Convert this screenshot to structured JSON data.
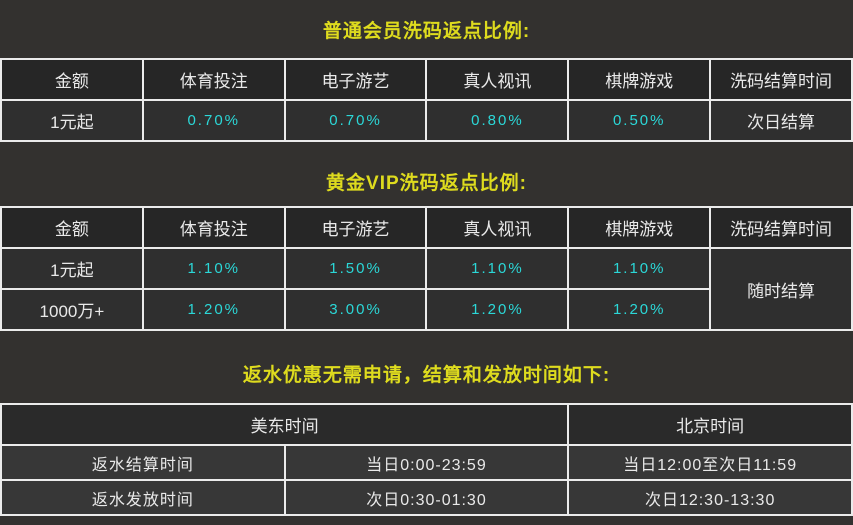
{
  "colors": {
    "page_background": "#33312f",
    "title_yellow": "#dedb1e",
    "value_cyan": "#2bd8d8",
    "table_border": "#ebebeb",
    "header_cell_background": "#262626",
    "data_cell_background": "#2f2f2f",
    "schedule_cell_background": "#373737",
    "text_white": "#e9e9e9"
  },
  "sections": [
    {
      "title": "普通会员洗码返点比例:",
      "table": {
        "headers": [
          "金额",
          "体育投注",
          "电子游艺",
          "真人视讯",
          "棋牌游戏",
          "洗码结算时间"
        ],
        "rows": [
          [
            "1元起",
            "0.70%",
            "0.70%",
            "0.80%",
            "0.50%",
            "次日结算"
          ]
        ]
      }
    },
    {
      "title": "黄金VIP洗码返点比例:",
      "table": {
        "headers": [
          "金额",
          "体育投注",
          "电子游艺",
          "真人视讯",
          "棋牌游戏",
          "洗码结算时间"
        ],
        "rows": [
          [
            "1元起",
            "1.10%",
            "1.50%",
            "1.10%",
            "1.10%"
          ],
          [
            "1000万+",
            "1.20%",
            "3.00%",
            "1.20%",
            "1.20%"
          ]
        ],
        "settlement_time": "随时结算"
      }
    },
    {
      "title": "返水优惠无需申请，结算和发放时间如下:",
      "table": {
        "headers": [
          "美东时间",
          "北京时间"
        ],
        "rows": [
          [
            "返水结算时间",
            "当日0:00-23:59",
            "当日12:00至次日11:59"
          ],
          [
            "返水发放时间",
            "次日0:30-01:30",
            "次日12:30-13:30"
          ]
        ]
      }
    }
  ]
}
